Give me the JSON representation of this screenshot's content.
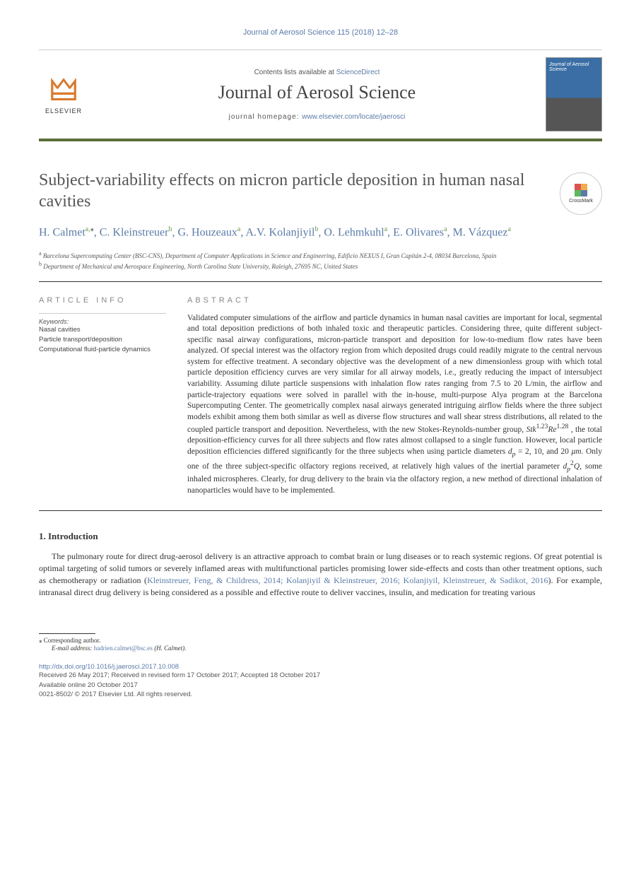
{
  "header": {
    "citation": "Journal of Aerosol Science 115 (2018) 12–28",
    "contents_prefix": "Contents lists available at ",
    "contents_link": "ScienceDirect",
    "journal_name": "Journal of Aerosol Science",
    "homepage_prefix": "journal homepage: ",
    "homepage_url": "www.elsevier.com/locate/jaerosci",
    "elsevier_label": "ELSEVIER",
    "cover_thumb_title": "Journal of Aerosol Science"
  },
  "crossmark_label": "CrossMark",
  "article": {
    "title": "Subject-variability effects on micron particle deposition in human nasal cavities",
    "authors_html": "H. Calmet<sup>a,</sup><sup class='sup-star'>⁎</sup>, C. Kleinstreuer<sup>b</sup>, G. Houzeaux<sup>a</sup>, A.V. Kolanjiyil<sup>b</sup>, O. Lehmkuhl<sup>a</sup>, E. Olivares<sup>a</sup>, M. Vázquez<sup>a</sup>",
    "affiliations": [
      {
        "sup": "a",
        "text": "Barcelona Supercomputing Center (BSC-CNS), Department of Computer Applications in Science and Engineering, Edificio NEXUS I, Gran Capitán 2-4, 08034 Barcelona, Spain"
      },
      {
        "sup": "b",
        "text": "Department of Mechanical and Aerospace Engineering, North Carolina State University, Raleigh, 27695 NC, United States"
      }
    ]
  },
  "info": {
    "heading": "ARTICLE INFO",
    "keywords_label": "Keywords:",
    "keywords": [
      "Nasal cavities",
      "Particle transport/deposition",
      "Computational fluid-particle dynamics"
    ]
  },
  "abstract": {
    "heading": "ABSTRACT",
    "text_html": "Validated computer simulations of the airflow and particle dynamics in human nasal cavities are important for local, segmental and total deposition predictions of both inhaled toxic and therapeutic particles. Considering three, quite different subject-specific nasal airway configurations, micron-particle transport and deposition for low-to-medium flow rates have been analyzed. Of special interest was the olfactory region from which deposited drugs could readily migrate to the central nervous system for effective treatment. A secondary objective was the development of a new dimensionless group with which total particle deposition efficiency curves are very similar for all airway models, i.e., greatly reducing the impact of intersubject variability. Assuming dilute particle suspensions with inhalation flow rates ranging from 7.5 to 20 L/min, the airflow and particle-trajectory equations were solved in parallel with the in-house, multi-purpose Alya program at the Barcelona Supercomputing Center. The geometrically complex nasal airways generated intriguing airflow fields where the three subject models exhibit among them both similar as well as diverse flow structures and wall shear stress distributions, all related to the coupled particle transport and deposition. Nevertheless, with the new Stokes-Reynolds-number group, <i>Stk</i><sup>1.23</sup><i>Re</i><sup>1.28</sup> , the total deposition-efficiency curves for all three subjects and flow rates almost collapsed to a single function. However, local particle deposition efficiencies differed significantly for the three subjects when using particle diameters <i>d<sub>p</sub></i> = 2, 10, and 20 <i>μm</i>. Only one of the three subject-specific olfactory regions received, at relatively high values of the inertial parameter <i>d<sub>p</sub></i><sup>2</sup><i>Q</i>, some inhaled microspheres. Clearly, for drug delivery to the brain via the olfactory region, a new method of directional inhalation of nanoparticles would have to be implemented."
  },
  "body": {
    "section_heading": "1. Introduction",
    "paragraph_html": "The pulmonary route for direct drug-aerosol delivery is an attractive approach to combat brain or lung diseases or to reach systemic regions. Of great potential is optimal targeting of solid tumors or severely inflamed areas with multifunctional particles promising lower side-effects and costs than other treatment options, such as chemotherapy or radiation (<a href='#'>Kleinstreuer, Feng, &amp; Childress, 2014; Kolanjiyil &amp; Kleinstreuer, 2016; Kolanjiyil, Kleinstreuer, &amp; Sadikot, 2016</a>). For example, intranasal direct drug delivery is being considered as a possible and effective route to deliver vaccines, insulin, and medication for treating various"
  },
  "footer": {
    "corresponding_label": "⁎ Corresponding author.",
    "email_label": "E-mail address: ",
    "email": "hadrien.calmet@bsc.es",
    "email_suffix": " (H. Calmet).",
    "doi": "http://dx.doi.org/10.1016/j.jaerosci.2017.10.008",
    "history_line1": "Received 26 May 2017; Received in revised form 17 October 2017; Accepted 18 October 2017",
    "history_line2": "Available online 20 October 2017",
    "copyright": "0021-8502/ © 2017 Elsevier Ltd. All rights reserved."
  },
  "colors": {
    "link": "#5a7ba8",
    "accent_green": "#6a9a4a",
    "border_dark": "#5a6e3a",
    "text_gray": "#555555",
    "heading_gray": "#888888",
    "elsevier_orange": "#d97a2e"
  }
}
